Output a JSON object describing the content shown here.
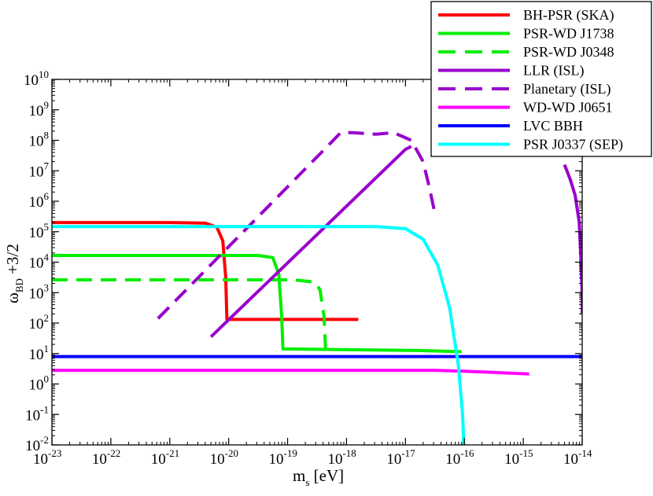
{
  "chart_data": {
    "type": "line",
    "title": "",
    "xlabel": {
      "base": "m",
      "sub": "s",
      "rest": " [eV]"
    },
    "ylabel": {
      "symbol": "ω",
      "sub": "BD",
      "rest": " +3/2"
    },
    "xscale": "log",
    "yscale": "log",
    "xlim_exp": [
      -23,
      -14
    ],
    "ylim_exp": [
      -2,
      10
    ],
    "x_ticks": [
      {
        "base": "10",
        "exp": "-23"
      },
      {
        "base": "10",
        "exp": "-22"
      },
      {
        "base": "10",
        "exp": "-21"
      },
      {
        "base": "10",
        "exp": "-20"
      },
      {
        "base": "10",
        "exp": "-19"
      },
      {
        "base": "10",
        "exp": "-18"
      },
      {
        "base": "10",
        "exp": "-17"
      },
      {
        "base": "10",
        "exp": "-16"
      },
      {
        "base": "10",
        "exp": "-15"
      },
      {
        "base": "10",
        "exp": "-14"
      }
    ],
    "y_ticks": [
      {
        "base": "10",
        "exp": "-2"
      },
      {
        "base": "10",
        "exp": "-1"
      },
      {
        "base": "10",
        "exp": "0"
      },
      {
        "base": "10",
        "exp": "1"
      },
      {
        "base": "10",
        "exp": "2"
      },
      {
        "base": "10",
        "exp": "3"
      },
      {
        "base": "10",
        "exp": "4"
      },
      {
        "base": "10",
        "exp": "5"
      },
      {
        "base": "10",
        "exp": "6"
      },
      {
        "base": "10",
        "exp": "7"
      },
      {
        "base": "10",
        "exp": "8"
      },
      {
        "base": "10",
        "exp": "9"
      },
      {
        "base": "10",
        "exp": "10"
      }
    ],
    "legend_position": "top-right",
    "grid": false,
    "series": [
      {
        "name": "BH-PSR (SKA)",
        "color": "#ff0000",
        "dash": "solid",
        "points": [
          [
            -23,
            5.3
          ],
          [
            -21,
            5.3
          ],
          [
            -20.4,
            5.28
          ],
          [
            -20.2,
            5.15
          ],
          [
            -20.1,
            4.7
          ],
          [
            -20.05,
            3.5
          ],
          [
            -20.03,
            2.12
          ],
          [
            -17.8,
            2.12
          ]
        ]
      },
      {
        "name": "PSR-WD J1738",
        "color": "#00ee00",
        "dash": "solid",
        "points": [
          [
            -23,
            4.22
          ],
          [
            -19.5,
            4.22
          ],
          [
            -19.25,
            4.15
          ],
          [
            -19.15,
            3.6
          ],
          [
            -19.1,
            2.2
          ],
          [
            -19.08,
            1.15
          ],
          [
            -16.8,
            1.1
          ],
          [
            -16.05,
            1.06
          ]
        ]
      },
      {
        "name": "PSR-WD J0348",
        "color": "#00ee00",
        "dash": "dashed",
        "points": [
          [
            -23,
            3.42
          ],
          [
            -18.9,
            3.42
          ],
          [
            -18.55,
            3.35
          ],
          [
            -18.45,
            3.1
          ],
          [
            -18.38,
            2.2
          ],
          [
            -18.35,
            0.9
          ]
        ]
      },
      {
        "name": "LLR (ISL)",
        "color": "#9900cc",
        "dash": "solid",
        "points": [
          [
            -20.3,
            1.55
          ],
          [
            -17,
            7.7
          ],
          [
            -16.9,
            7.8
          ]
        ]
      },
      {
        "name": "LLR (ISL)",
        "color": "#9900cc",
        "dash": "solid",
        "points": [
          [
            -14.3,
            7.2
          ],
          [
            -14.2,
            6.7
          ],
          [
            -14.12,
            6.2
          ],
          [
            -14.05,
            5.3
          ],
          [
            -14.02,
            4.0
          ],
          [
            -14,
            2.9
          ],
          [
            -14,
            2.3
          ]
        ]
      },
      {
        "name": "Planetary (ISL)",
        "color": "#9900cc",
        "dash": "dashed",
        "points": [
          [
            -21.2,
            2.15
          ],
          [
            -18.3,
            7.85
          ],
          [
            -18.1,
            8.25
          ],
          [
            -17.9,
            8.25
          ],
          [
            -17.5,
            8.2
          ],
          [
            -17.2,
            8.25
          ],
          [
            -16.9,
            8.0
          ],
          [
            -16.7,
            7.3
          ],
          [
            -16.6,
            6.5
          ],
          [
            -16.5,
            5.6
          ]
        ]
      },
      {
        "name": "WD-WD J0651",
        "color": "#ff00ff",
        "dash": "solid",
        "points": [
          [
            -23,
            0.45
          ],
          [
            -16.5,
            0.45
          ],
          [
            -16,
            0.42
          ],
          [
            -15.5,
            0.38
          ],
          [
            -14.9,
            0.33
          ]
        ]
      },
      {
        "name": "LVC BBH",
        "color": "#0000ff",
        "dash": "solid",
        "points": [
          [
            -23,
            0.9
          ],
          [
            -14,
            0.9
          ]
        ]
      },
      {
        "name": "PSR J0337 (SEP)",
        "color": "#00ffff",
        "dash": "solid",
        "points": [
          [
            -23,
            5.17
          ],
          [
            -17.5,
            5.17
          ],
          [
            -17,
            5.1
          ],
          [
            -16.7,
            4.75
          ],
          [
            -16.45,
            3.9
          ],
          [
            -16.25,
            2.5
          ],
          [
            -16.1,
            0.6
          ],
          [
            -16.03,
            -1.0
          ],
          [
            -16.01,
            -2
          ]
        ]
      }
    ]
  }
}
